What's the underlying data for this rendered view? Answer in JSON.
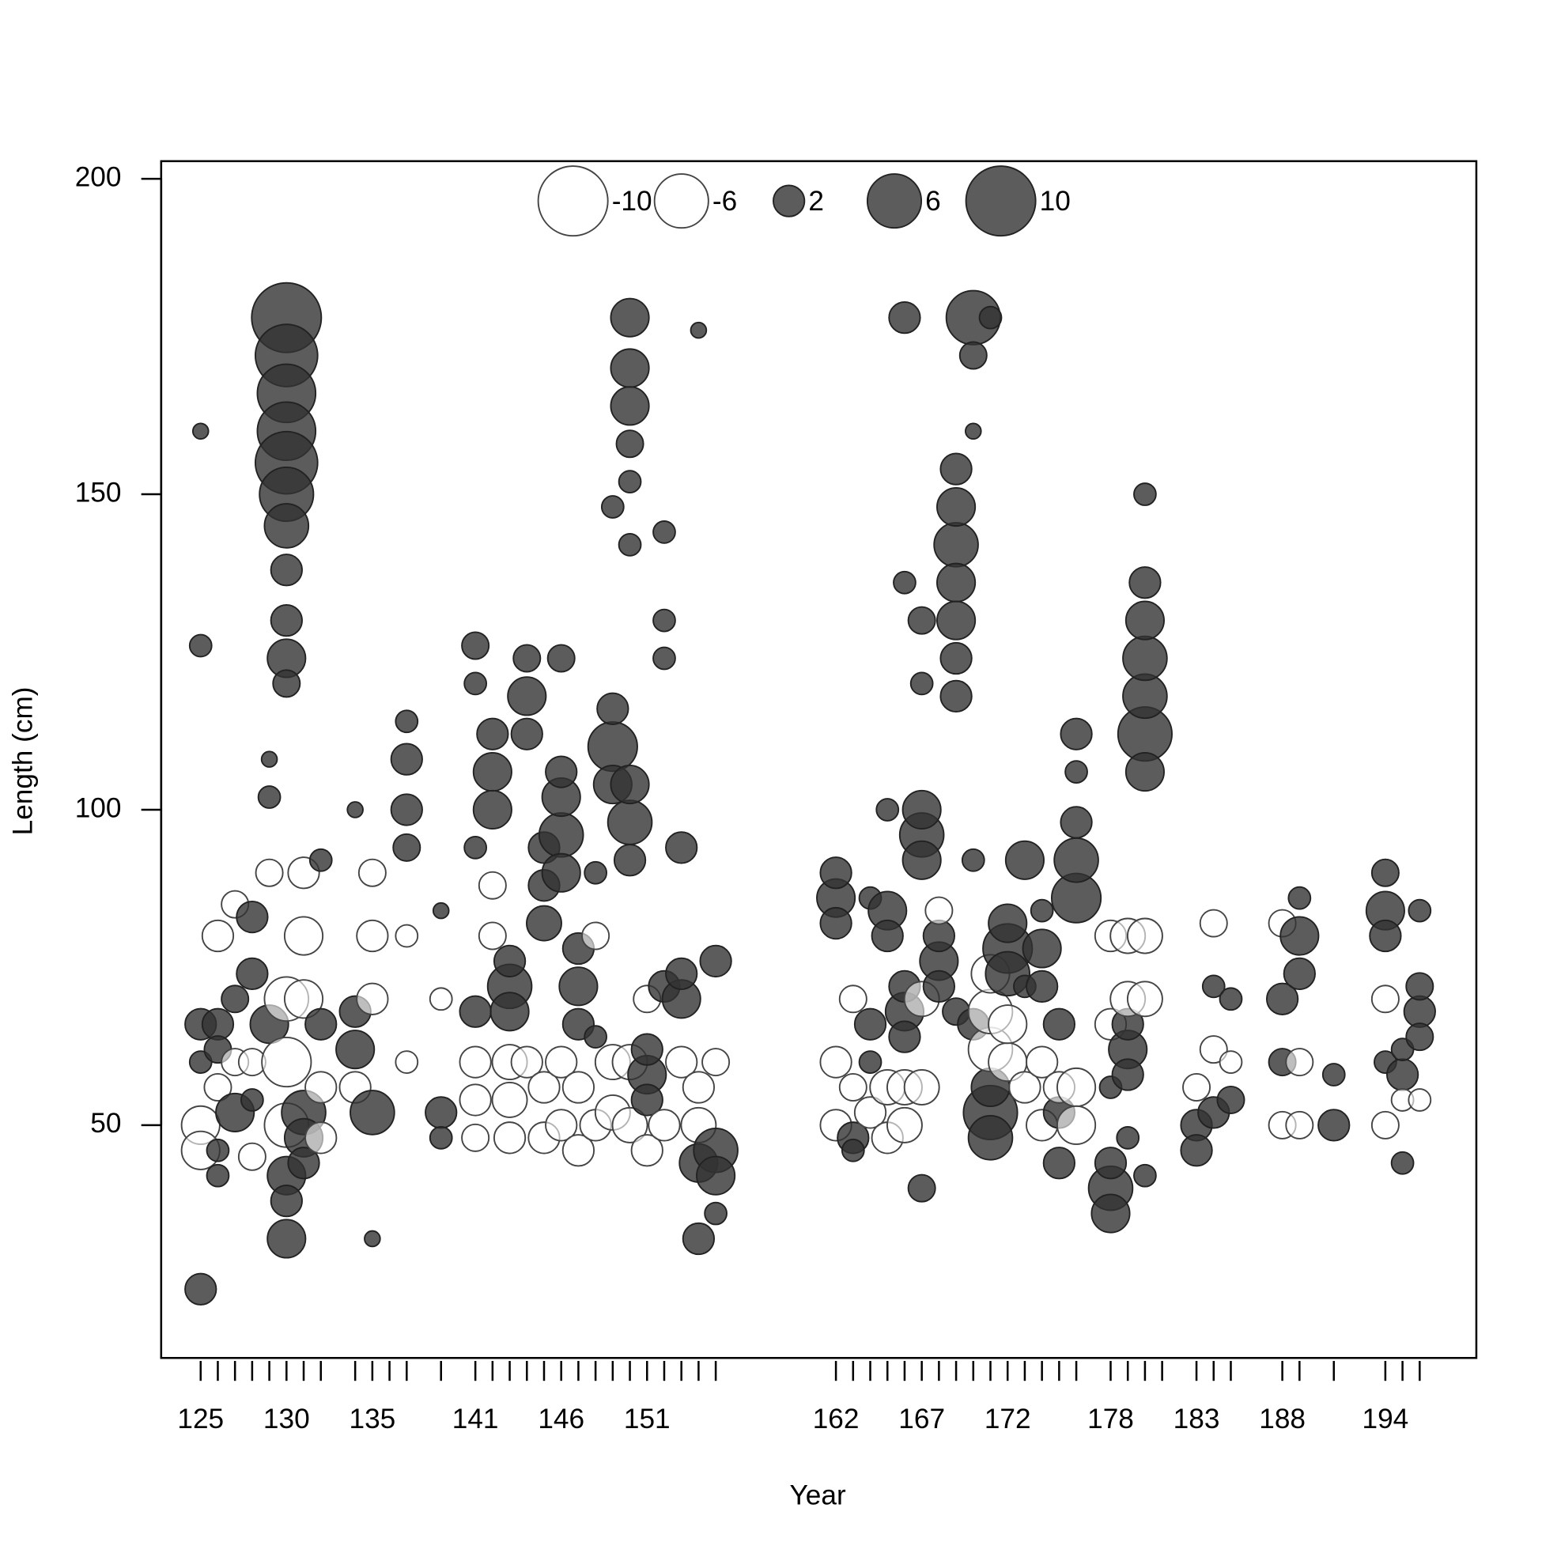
{
  "chart_data": {
    "type": "bubble",
    "x_label": "Year",
    "y_label": "Length (cm)",
    "xlim": [
      122.7,
      199.3
    ],
    "ylim": [
      13.1,
      202.8
    ],
    "xticks": [
      125,
      130,
      135,
      141,
      146,
      151,
      162,
      167,
      172,
      178,
      183,
      188,
      194
    ],
    "xminor_ticks": [
      126,
      127,
      128,
      129,
      131,
      132,
      134,
      136,
      137,
      139,
      142,
      143,
      144,
      145,
      147,
      148,
      149,
      150,
      152,
      153,
      154,
      155,
      163,
      164,
      165,
      166,
      168,
      169,
      170,
      171,
      173,
      174,
      175,
      176,
      179,
      180,
      181,
      184,
      185,
      189,
      191,
      195,
      196
    ],
    "yticks": [
      50,
      100,
      150,
      200
    ],
    "legend_values": [
      -10,
      -6,
      2,
      6,
      10
    ],
    "positive_color": "#333333",
    "negative_color": "#ffffff",
    "columns": [
      {
        "year": 125,
        "lengths": [
          24,
          66,
          60,
          50,
          46,
          126,
          160
        ],
        "values": [
          2,
          2,
          1,
          -3,
          -3,
          1,
          0.5
        ]
      },
      {
        "year": 126,
        "lengths": [
          66,
          62,
          46,
          42,
          80,
          56
        ],
        "values": [
          2,
          1.5,
          1,
          1,
          -2,
          -1.5
        ]
      },
      {
        "year": 127,
        "lengths": [
          52,
          70,
          60,
          85
        ],
        "values": [
          3,
          1.5,
          -1.5,
          -1.5
        ]
      },
      {
        "year": 128,
        "lengths": [
          83,
          74,
          54,
          60,
          45
        ],
        "values": [
          2,
          2,
          1,
          -1.5,
          -1.5
        ]
      },
      {
        "year": 129,
        "lengths": [
          66,
          102,
          108,
          90
        ],
        "values": [
          3,
          1,
          0.5,
          -1.5
        ]
      },
      {
        "year": 130,
        "lengths": [
          178,
          172,
          166,
          160,
          155,
          150,
          145,
          138,
          130,
          124,
          120,
          42,
          38,
          32,
          70,
          60,
          50
        ],
        "values": [
          10,
          8,
          7,
          7,
          8,
          6,
          4,
          2,
          2,
          3,
          1.5,
          3,
          2,
          3,
          -4,
          -5,
          -4
        ]
      },
      {
        "year": 131,
        "lengths": [
          52,
          48,
          44,
          70,
          80,
          90
        ],
        "values": [
          4,
          3,
          2,
          -3,
          -3,
          -2
        ]
      },
      {
        "year": 132,
        "lengths": [
          92,
          66,
          56,
          48
        ],
        "values": [
          1,
          2,
          -2,
          -2
        ]
      },
      {
        "year": 134,
        "lengths": [
          62,
          68,
          100,
          56
        ],
        "values": [
          3,
          2,
          0.5,
          -2
        ]
      },
      {
        "year": 135,
        "lengths": [
          52,
          32,
          80,
          90,
          70
        ],
        "values": [
          4,
          0.5,
          -2,
          -1.5,
          -2
        ]
      },
      {
        "year": 137,
        "lengths": [
          100,
          108,
          114,
          94,
          80,
          60
        ],
        "values": [
          2,
          2,
          1,
          1.5,
          -1,
          -1
        ]
      },
      {
        "year": 139,
        "lengths": [
          52,
          48,
          84,
          70
        ],
        "values": [
          2,
          1,
          0.5,
          -1
        ]
      },
      {
        "year": 141,
        "lengths": [
          68,
          126,
          120,
          94,
          60,
          54,
          48
        ],
        "values": [
          2,
          1.5,
          1,
          1,
          -2,
          -2,
          -1.5
        ]
      },
      {
        "year": 142,
        "lengths": [
          106,
          100,
          112,
          88,
          80
        ],
        "values": [
          3,
          3,
          2,
          -1.5,
          -1.5
        ]
      },
      {
        "year": 143,
        "lengths": [
          72,
          68,
          76,
          60,
          54,
          48
        ],
        "values": [
          4,
          3,
          2,
          -2.5,
          -2.5,
          -2
        ]
      },
      {
        "year": 144,
        "lengths": [
          118,
          112,
          124,
          60
        ],
        "values": [
          3,
          2,
          1.5,
          -2
        ]
      },
      {
        "year": 145,
        "lengths": [
          82,
          88,
          94,
          56,
          48
        ],
        "values": [
          2.5,
          2,
          2,
          -2,
          -2
        ]
      },
      {
        "year": 146,
        "lengths": [
          96,
          90,
          102,
          106,
          124,
          60,
          50
        ],
        "values": [
          4,
          3,
          3,
          2,
          1.5,
          -2,
          -2
        ]
      },
      {
        "year": 147,
        "lengths": [
          72,
          66,
          78,
          56,
          46
        ],
        "values": [
          3,
          2,
          2,
          -2,
          -2
        ]
      },
      {
        "year": 148,
        "lengths": [
          64,
          90,
          80,
          50
        ],
        "values": [
          1,
          1,
          -1.5,
          -2
        ]
      },
      {
        "year": 149,
        "lengths": [
          110,
          104,
          116,
          60,
          52,
          148
        ],
        "values": [
          5,
          3,
          2,
          -2.5,
          -2.5,
          1
        ]
      },
      {
        "year": 150,
        "lengths": [
          98,
          104,
          92,
          178,
          170,
          164,
          158,
          152,
          142,
          60,
          50
        ],
        "values": [
          4,
          3,
          2,
          3,
          3,
          3,
          1.5,
          1,
          1,
          -2.5,
          -2.5
        ]
      },
      {
        "year": 151,
        "lengths": [
          58,
          54,
          62,
          46,
          70
        ],
        "values": [
          3,
          2,
          2,
          -2,
          -1.5
        ]
      },
      {
        "year": 152,
        "lengths": [
          72,
          144,
          130,
          124,
          50
        ],
        "values": [
          2,
          1,
          1,
          1,
          -2
        ]
      },
      {
        "year": 153,
        "lengths": [
          70,
          74,
          94,
          60
        ],
        "values": [
          3,
          2,
          2,
          -2
        ]
      },
      {
        "year": 154,
        "lengths": [
          44,
          32,
          176,
          56,
          50
        ],
        "values": [
          3,
          2,
          0.5,
          -2,
          -2.5
        ]
      },
      {
        "year": 155,
        "lengths": [
          46,
          42,
          76,
          36,
          60
        ],
        "values": [
          4,
          3,
          2,
          1,
          -1.5
        ]
      },
      {
        "year": 162,
        "lengths": [
          86,
          82,
          90,
          60,
          50
        ],
        "values": [
          3,
          2,
          2,
          -2,
          -2
        ]
      },
      {
        "year": 163,
        "lengths": [
          48,
          46,
          70,
          56
        ],
        "values": [
          2,
          1,
          -1.5,
          -1.5
        ]
      },
      {
        "year": 164,
        "lengths": [
          66,
          86,
          60,
          52
        ],
        "values": [
          2,
          1,
          1,
          -2
        ]
      },
      {
        "year": 165,
        "lengths": [
          84,
          80,
          100,
          56,
          48
        ],
        "values": [
          3,
          2,
          1,
          -2.5,
          -2
        ]
      },
      {
        "year": 166,
        "lengths": [
          68,
          64,
          72,
          178,
          136,
          56,
          50
        ],
        "values": [
          3,
          2,
          2,
          2,
          1,
          -2.5,
          -2.5
        ]
      },
      {
        "year": 167,
        "lengths": [
          96,
          92,
          100,
          130,
          120,
          40,
          70,
          56
        ],
        "values": [
          4,
          3,
          3,
          1.5,
          1,
          1.5,
          -2.5,
          -2.5
        ]
      },
      {
        "year": 168,
        "lengths": [
          76,
          72,
          80,
          84
        ],
        "values": [
          3,
          2,
          2,
          -1.5
        ]
      },
      {
        "year": 169,
        "lengths": [
          142,
          136,
          148,
          130,
          124,
          118,
          154,
          68
        ],
        "values": [
          4,
          3,
          3,
          3,
          2,
          2,
          2,
          1.5
        ]
      },
      {
        "year": 170,
        "lengths": [
          178,
          172,
          66,
          160,
          92
        ],
        "values": [
          6,
          1.5,
          2,
          0.5,
          1
        ]
      },
      {
        "year": 171,
        "lengths": [
          52,
          48,
          56,
          178,
          62,
          68,
          74
        ],
        "values": [
          6,
          4,
          3,
          1,
          -4,
          -4,
          -3
        ]
      },
      {
        "year": 172,
        "lengths": [
          78,
          74,
          82,
          60,
          66
        ],
        "values": [
          5,
          4,
          3,
          -3,
          -3
        ]
      },
      {
        "year": 173,
        "lengths": [
          92,
          72,
          56
        ],
        "values": [
          3,
          1,
          -2
        ]
      },
      {
        "year": 174,
        "lengths": [
          78,
          72,
          84,
          60,
          50
        ],
        "values": [
          3,
          2,
          1,
          -2,
          -2
        ]
      },
      {
        "year": 175,
        "lengths": [
          66,
          52,
          44,
          56
        ],
        "values": [
          2,
          2,
          2,
          -2
        ]
      },
      {
        "year": 176,
        "lengths": [
          86,
          92,
          98,
          112,
          106,
          56,
          50
        ],
        "values": [
          5,
          4,
          2,
          2,
          1,
          -3,
          -3
        ]
      },
      {
        "year": 178,
        "lengths": [
          40,
          36,
          44,
          56,
          66,
          80
        ],
        "values": [
          4,
          3,
          2,
          1,
          -2,
          -2
        ]
      },
      {
        "year": 179,
        "lengths": [
          62,
          58,
          66,
          48,
          80,
          70
        ],
        "values": [
          3,
          2,
          2,
          1,
          -2.5,
          -2.5
        ]
      },
      {
        "year": 180,
        "lengths": [
          112,
          118,
          124,
          130,
          106,
          136,
          150,
          42,
          80,
          70
        ],
        "values": [
          6,
          4,
          4,
          3,
          3,
          2,
          1,
          1,
          -2.5,
          -2.5
        ]
      },
      {
        "year": 183,
        "lengths": [
          50,
          46,
          56
        ],
        "values": [
          2,
          2,
          -1.5
        ]
      },
      {
        "year": 184,
        "lengths": [
          52,
          72,
          62,
          82
        ],
        "values": [
          2,
          1,
          -1.5,
          -1.5
        ]
      },
      {
        "year": 185,
        "lengths": [
          54,
          70,
          60
        ],
        "values": [
          1.5,
          1,
          -1
        ]
      },
      {
        "year": 188,
        "lengths": [
          70,
          60,
          82,
          50
        ],
        "values": [
          2,
          1.5,
          -1.5,
          -1.5
        ]
      },
      {
        "year": 189,
        "lengths": [
          80,
          74,
          86,
          60,
          50
        ],
        "values": [
          3,
          2,
          1,
          -1.5,
          -1.5
        ]
      },
      {
        "year": 191,
        "lengths": [
          50,
          58
        ],
        "values": [
          2,
          1
        ]
      },
      {
        "year": 194,
        "lengths": [
          84,
          80,
          90,
          60,
          70,
          50
        ],
        "values": [
          3,
          2,
          1.5,
          1,
          -1.5,
          -1.5
        ]
      },
      {
        "year": 195,
        "lengths": [
          58,
          62,
          44,
          54
        ],
        "values": [
          2,
          1,
          1,
          -1
        ]
      },
      {
        "year": 196,
        "lengths": [
          68,
          72,
          64,
          84,
          54
        ],
        "values": [
          2,
          1.5,
          1.5,
          1,
          -1
        ]
      }
    ]
  }
}
